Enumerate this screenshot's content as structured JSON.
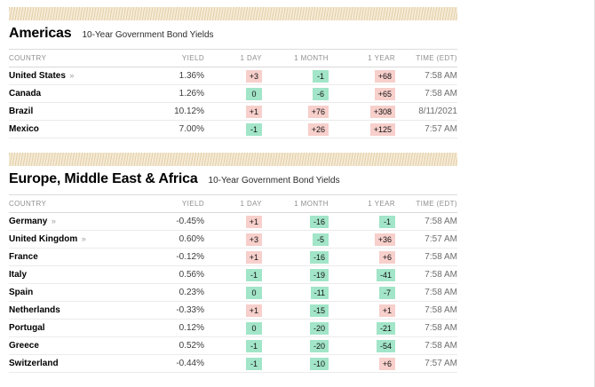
{
  "colors": {
    "up_bg": "#f7cfcb",
    "down_bg": "#a2e5c8",
    "band": "#f3e7d3"
  },
  "sections": [
    {
      "title": "Americas",
      "subtitle": "10-Year Government Bond Yields",
      "columns": [
        "COUNTRY",
        "YIELD",
        "1 DAY",
        "1 MONTH",
        "1 YEAR",
        "TIME (EDT)"
      ],
      "rows": [
        {
          "country": "United States",
          "link_arrow": "»",
          "yield": "1.36%",
          "changes": [
            {
              "value": "+3",
              "dir": "up"
            },
            {
              "value": "-1",
              "dir": "down"
            },
            {
              "value": "+68",
              "dir": "up"
            }
          ],
          "time": "7:58 AM"
        },
        {
          "country": "Canada",
          "link_arrow": "",
          "yield": "1.26%",
          "changes": [
            {
              "value": "0",
              "dir": "down"
            },
            {
              "value": "-6",
              "dir": "down"
            },
            {
              "value": "+65",
              "dir": "up"
            }
          ],
          "time": "7:58 AM"
        },
        {
          "country": "Brazil",
          "link_arrow": "",
          "yield": "10.12%",
          "changes": [
            {
              "value": "+1",
              "dir": "up"
            },
            {
              "value": "+76",
              "dir": "up"
            },
            {
              "value": "+308",
              "dir": "up"
            }
          ],
          "time": "8/11/2021"
        },
        {
          "country": "Mexico",
          "link_arrow": "",
          "yield": "7.00%",
          "changes": [
            {
              "value": "-1",
              "dir": "down"
            },
            {
              "value": "+26",
              "dir": "up"
            },
            {
              "value": "+125",
              "dir": "up"
            }
          ],
          "time": "7:57 AM"
        }
      ]
    },
    {
      "title": "Europe, Middle East & Africa",
      "subtitle": "10-Year Government Bond Yields",
      "columns": [
        "COUNTRY",
        "YIELD",
        "1 DAY",
        "1 MONTH",
        "1 YEAR",
        "TIME (EDT)"
      ],
      "rows": [
        {
          "country": "Germany",
          "link_arrow": "»",
          "yield": "-0.45%",
          "changes": [
            {
              "value": "+1",
              "dir": "up"
            },
            {
              "value": "-16",
              "dir": "down"
            },
            {
              "value": "-1",
              "dir": "down"
            }
          ],
          "time": "7:58 AM"
        },
        {
          "country": "United Kingdom",
          "link_arrow": "»",
          "yield": "0.60%",
          "changes": [
            {
              "value": "+3",
              "dir": "up"
            },
            {
              "value": "-5",
              "dir": "down"
            },
            {
              "value": "+36",
              "dir": "up"
            }
          ],
          "time": "7:57 AM"
        },
        {
          "country": "France",
          "link_arrow": "",
          "yield": "-0.12%",
          "changes": [
            {
              "value": "+1",
              "dir": "up"
            },
            {
              "value": "-16",
              "dir": "down"
            },
            {
              "value": "+6",
              "dir": "up"
            }
          ],
          "time": "7:58 AM"
        },
        {
          "country": "Italy",
          "link_arrow": "",
          "yield": "0.56%",
          "changes": [
            {
              "value": "-1",
              "dir": "down"
            },
            {
              "value": "-19",
              "dir": "down"
            },
            {
              "value": "-41",
              "dir": "down"
            }
          ],
          "time": "7:58 AM"
        },
        {
          "country": "Spain",
          "link_arrow": "",
          "yield": "0.23%",
          "changes": [
            {
              "value": "0",
              "dir": "down"
            },
            {
              "value": "-11",
              "dir": "down"
            },
            {
              "value": "-7",
              "dir": "down"
            }
          ],
          "time": "7:58 AM"
        },
        {
          "country": "Netherlands",
          "link_arrow": "",
          "yield": "-0.33%",
          "changes": [
            {
              "value": "+1",
              "dir": "up"
            },
            {
              "value": "-15",
              "dir": "down"
            },
            {
              "value": "+1",
              "dir": "up"
            }
          ],
          "time": "7:58 AM"
        },
        {
          "country": "Portugal",
          "link_arrow": "",
          "yield": "0.12%",
          "changes": [
            {
              "value": "0",
              "dir": "down"
            },
            {
              "value": "-20",
              "dir": "down"
            },
            {
              "value": "-21",
              "dir": "down"
            }
          ],
          "time": "7:58 AM"
        },
        {
          "country": "Greece",
          "link_arrow": "",
          "yield": "0.52%",
          "changes": [
            {
              "value": "-1",
              "dir": "down"
            },
            {
              "value": "-20",
              "dir": "down"
            },
            {
              "value": "-54",
              "dir": "down"
            }
          ],
          "time": "7:58 AM"
        },
        {
          "country": "Switzerland",
          "link_arrow": "",
          "yield": "-0.44%",
          "changes": [
            {
              "value": "-1",
              "dir": "down"
            },
            {
              "value": "-10",
              "dir": "down"
            },
            {
              "value": "+6",
              "dir": "up"
            }
          ],
          "time": "7:57 AM"
        }
      ]
    }
  ]
}
